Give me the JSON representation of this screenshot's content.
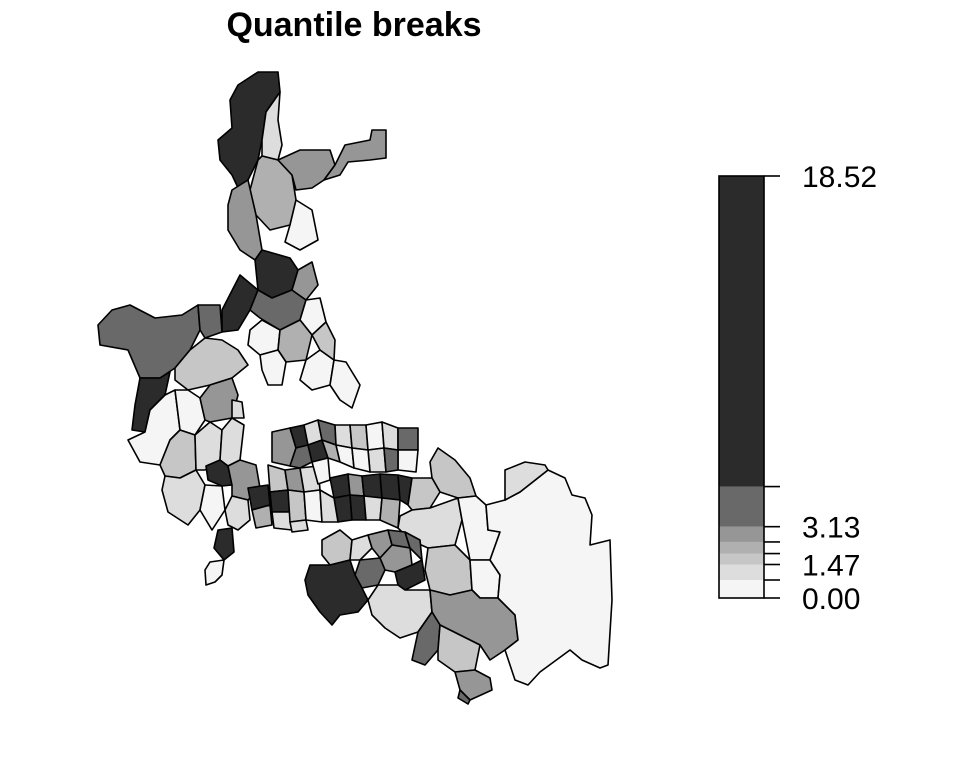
{
  "title": "Quantile breaks",
  "colors": {
    "class0": "#f5f5f5",
    "class1": "#dddddd",
    "class2": "#c6c6c6",
    "class3": "#b0b0b0",
    "class4": "#969696",
    "class5": "#696969",
    "class6": "#2b2b2b",
    "outline": "#000000"
  },
  "legend": {
    "min": 0.0,
    "max": 18.52,
    "breaks": [
      0.0,
      0.79,
      1.47,
      1.95,
      2.46,
      3.13,
      4.89,
      18.52
    ],
    "labels": [
      {
        "text": "18.52",
        "value": 18.52
      },
      {
        "text": "3.13",
        "value": 3.13
      },
      {
        "text": "1.47",
        "value": 1.47
      },
      {
        "text": "0.00",
        "value": 0.0
      }
    ]
  }
}
